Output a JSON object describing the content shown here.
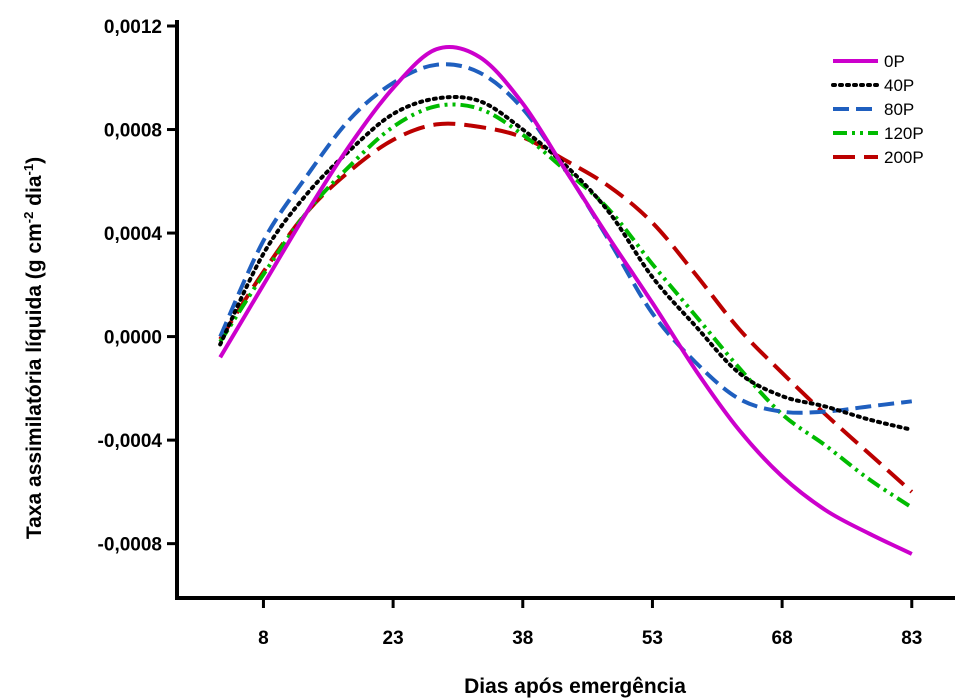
{
  "chart_data": {
    "type": "line",
    "xlabel": "Dias após emergência",
    "ylabel": {
      "base": "Taxa assimilatória líquida (g cm",
      "sup1": "-2",
      "mid": " dia",
      "sup2": "-1",
      "end": ")"
    },
    "xlim": [
      -2,
      88
    ],
    "ylim": [
      -0.00101,
      0.0012
    ],
    "x_ticks": [
      8,
      23,
      38,
      53,
      68,
      83
    ],
    "x_tick_labels": [
      "8",
      "23",
      "38",
      "53",
      "68",
      "83"
    ],
    "y_ticks": [
      -0.0008,
      -0.0004,
      0.0,
      0.0004,
      0.0008,
      0.0012
    ],
    "y_tick_labels": [
      "-0,0008",
      "-0,0004",
      "0,0000",
      "0,0004",
      "0,0008",
      "0,0012"
    ],
    "legend_position": "top-right",
    "series": [
      {
        "name": "0P",
        "color": "#cc00cc",
        "dash": "solid",
        "x": [
          3,
          8,
          13,
          18,
          23,
          28,
          33,
          38,
          43,
          48,
          53,
          58,
          63,
          68,
          73,
          78,
          83
        ],
        "y": [
          -8e-05,
          0.0002,
          0.00048,
          0.00074,
          0.00096,
          0.00111,
          0.00108,
          0.0009,
          0.00064,
          0.00038,
          0.00013,
          -0.00013,
          -0.00036,
          -0.00054,
          -0.00067,
          -0.00076,
          -0.00084
        ]
      },
      {
        "name": "40P",
        "color": "#000000",
        "dash": "dot",
        "x": [
          3,
          8,
          13,
          18,
          23,
          28,
          33,
          38,
          43,
          48,
          53,
          58,
          63,
          68,
          73,
          78,
          83
        ],
        "y": [
          -3e-05,
          0.00032,
          0.00055,
          0.00072,
          0.00086,
          0.00092,
          0.00091,
          0.0008,
          0.00066,
          0.00048,
          0.00023,
          4e-05,
          -0.00014,
          -0.00023,
          -0.00027,
          -0.00032,
          -0.00036
        ]
      },
      {
        "name": "80P",
        "color": "#1f5fbf",
        "dash": "dash",
        "x": [
          3,
          8,
          13,
          18,
          23,
          28,
          33,
          38,
          43,
          48,
          53,
          58,
          63,
          68,
          73,
          78,
          83
        ],
        "y": [
          0.0,
          0.00037,
          0.00062,
          0.00084,
          0.00098,
          0.00105,
          0.00102,
          0.00088,
          0.00064,
          0.00037,
          9e-05,
          -0.0001,
          -0.00024,
          -0.00029,
          -0.00029,
          -0.00027,
          -0.00025
        ]
      },
      {
        "name": "120P",
        "color": "#00bb00",
        "dash": "dashdotdot",
        "x": [
          3,
          8,
          13,
          18,
          23,
          28,
          33,
          38,
          43,
          48,
          53,
          58,
          63,
          68,
          73,
          78,
          83
        ],
        "y": [
          -2e-05,
          0.00024,
          0.00048,
          0.00066,
          0.00081,
          0.00089,
          0.00088,
          0.00078,
          0.00064,
          0.00049,
          0.00028,
          8e-05,
          -0.00012,
          -0.0003,
          -0.00042,
          -0.00055,
          -0.00066
        ]
      },
      {
        "name": "200P",
        "color": "#bb0000",
        "dash": "longdash",
        "x": [
          3,
          8,
          13,
          18,
          23,
          28,
          33,
          38,
          43,
          48,
          53,
          58,
          63,
          68,
          73,
          78,
          83
        ],
        "y": [
          -1e-05,
          0.00025,
          0.00048,
          0.00064,
          0.00076,
          0.00082,
          0.00081,
          0.00077,
          0.00068,
          0.00058,
          0.00044,
          0.00024,
          3e-05,
          -0.00014,
          -0.0003,
          -0.00045,
          -0.0006
        ]
      }
    ]
  }
}
